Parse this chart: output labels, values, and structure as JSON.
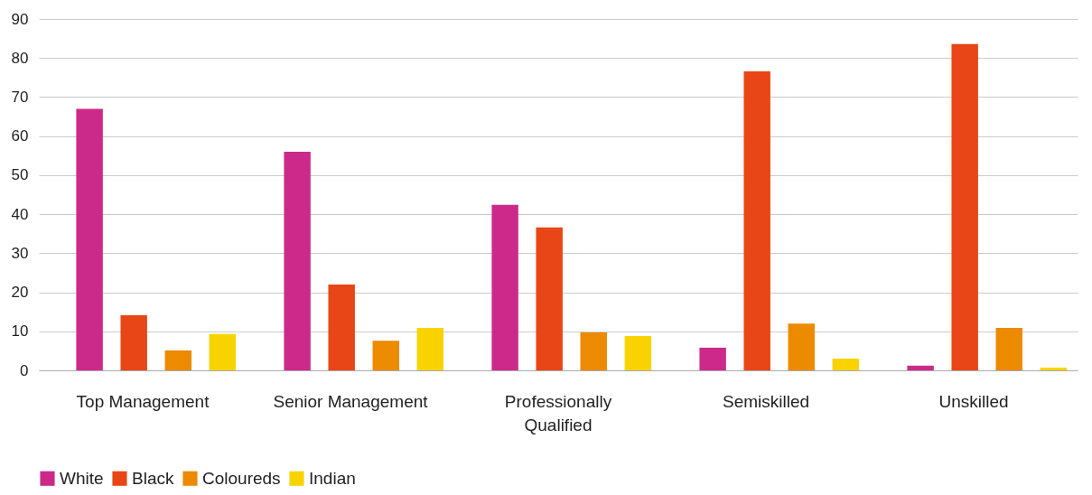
{
  "chart_data": {
    "type": "bar",
    "categories": [
      "Top Management",
      "Senior Management",
      "Professionally\nQualified",
      "Semiskilled",
      "Unskilled"
    ],
    "series": [
      {
        "name": "White",
        "color": "#cc2a8a",
        "values": [
          67,
          56,
          42.4,
          5.8,
          1.2
        ]
      },
      {
        "name": "Black",
        "color": "#e84616",
        "values": [
          14.1,
          22,
          36.6,
          76.6,
          83.6
        ]
      },
      {
        "name": "Coloureds",
        "color": "#ec8a00",
        "values": [
          5.1,
          7.6,
          9.7,
          12,
          10.9
        ]
      },
      {
        "name": "Indian",
        "color": "#f9d300",
        "values": [
          9.3,
          10.9,
          8.8,
          3,
          0.7
        ]
      }
    ],
    "ylim": [
      0,
      90
    ],
    "yticks": [
      0,
      10,
      20,
      30,
      40,
      50,
      60,
      70,
      80,
      90
    ],
    "grid": "y",
    "legend": "bottom"
  }
}
